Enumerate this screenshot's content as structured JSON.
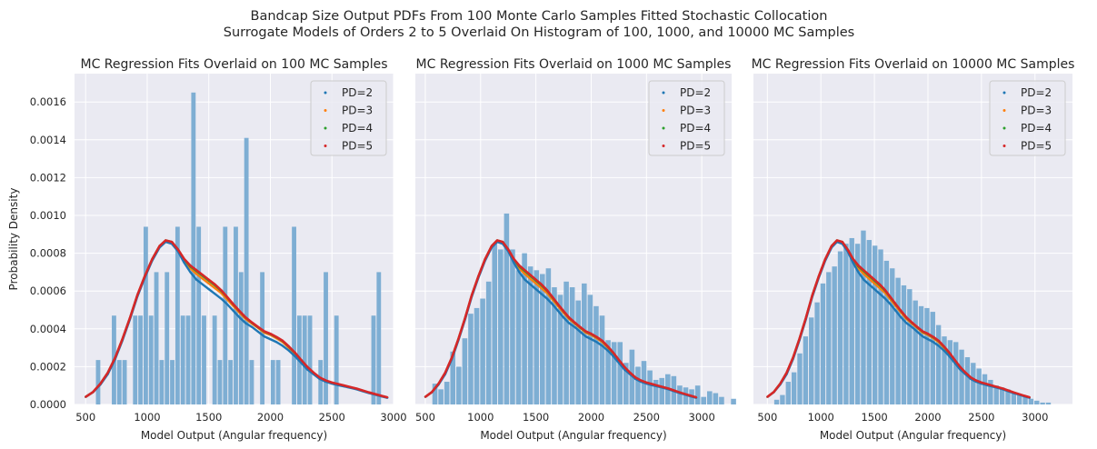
{
  "figure": {
    "suptitle_line1": "Bandcap Size Output PDFs From 100 Monte Carlo Samples Fitted Stochastic Collocation",
    "suptitle_line2": "Surrogate Models of Orders 2 to 5 Overlaid On Histogram of 100, 1000, and 10000 MC Samples",
    "colors": {
      "axes_bg": "#eaeaf2",
      "grid": "#ffffff",
      "hist": "#7eaed3",
      "pd2": "#1f77b4",
      "pd3": "#ff7f0e",
      "pd4": "#2ca02c",
      "pd5": "#d62728"
    }
  },
  "chart_data": [
    {
      "type": "histogram+line",
      "title": "MC Regression Fits Overlaid on 100 MC Samples",
      "xlabel": "Model Output (Angular frequency)",
      "ylabel": "Probability Density",
      "xlim": [
        410,
        3000
      ],
      "ylim": [
        0,
        0.00175
      ],
      "xticks": [
        500,
        1000,
        1500,
        2000,
        2500,
        3000
      ],
      "yticks": [
        0,
        0.0002,
        0.0004,
        0.0006,
        0.0008,
        0.001,
        0.0012,
        0.0014,
        0.0016
      ],
      "ytick_labels": [
        "0.0000",
        "0.0002",
        "0.0004",
        "0.0006",
        "0.0008",
        "0.0010",
        "0.0012",
        "0.0014",
        "0.0016"
      ],
      "grid": true,
      "legend": "top-right",
      "legend_entries": [
        "PD=2",
        "PD=3",
        "PD=4",
        "PD=5"
      ],
      "hist_bin_edges_start": 580,
      "hist_bin_width": 43,
      "hist_values": [
        0.000235,
        0,
        0,
        0.00047,
        0.000235,
        0.000235,
        0,
        0.00047,
        0.00047,
        0.00094,
        0.00047,
        0.0007,
        0.000235,
        0.0007,
        0.000235,
        0.00094,
        0.00047,
        0.00047,
        0.00165,
        0.00094,
        0.00047,
        0,
        0.00047,
        0.000235,
        0.00094,
        0.000235,
        0.00094,
        0.0007,
        0.00141,
        0.000235,
        0,
        0.0007,
        0,
        0.000235,
        0.000235,
        0,
        0,
        0.00094,
        0.00047,
        0.00047,
        0.00047,
        0,
        0.000235,
        0.0007,
        0,
        0.00047,
        0,
        0,
        0,
        0,
        0,
        0,
        0.00047,
        0.0007
      ]
    },
    {
      "type": "histogram+line",
      "title": "MC Regression Fits Overlaid on 1000 MC Samples",
      "xlabel": "Model Output (Angular frequency)",
      "ylabel": "",
      "xlim": [
        410,
        3270
      ],
      "ylim": [
        0,
        0.00175
      ],
      "xticks": [
        500,
        1000,
        1500,
        2000,
        2500,
        3000
      ],
      "grid": true,
      "legend": "top-right",
      "legend_entries": [
        "PD=2",
        "PD=3",
        "PD=4",
        "PD=5"
      ],
      "hist_bin_edges_start": 560,
      "hist_bin_width": 54,
      "hist_values": [
        0.00011,
        8e-05,
        0.00012,
        0.00028,
        0.0002,
        0.00035,
        0.00048,
        0.00051,
        0.00056,
        0.00065,
        0.00085,
        0.00082,
        0.00101,
        0.00082,
        0.00071,
        0.0008,
        0.00073,
        0.00071,
        0.00069,
        0.00072,
        0.00062,
        0.00058,
        0.00065,
        0.00062,
        0.00055,
        0.00064,
        0.00058,
        0.00052,
        0.00047,
        0.00034,
        0.00033,
        0.00033,
        0.00022,
        0.00029,
        0.0002,
        0.00023,
        0.00018,
        0.00013,
        0.00014,
        0.00016,
        0.00015,
        0.0001,
        9e-05,
        8e-05,
        0.0001,
        4e-05,
        7e-05,
        6e-05,
        4e-05,
        0,
        3e-05
      ]
    },
    {
      "type": "histogram+line",
      "title": "MC Regression Fits Overlaid on 10000 MC Samples",
      "xlabel": "Model Output (Angular frequency)",
      "ylabel": "",
      "xlim": [
        370,
        3350
      ],
      "ylim": [
        0,
        0.00175
      ],
      "xticks": [
        500,
        1000,
        1500,
        2000,
        2500,
        3000
      ],
      "grid": true,
      "legend": "top-right",
      "legend_entries": [
        "PD=2",
        "PD=3",
        "PD=4",
        "PD=5"
      ],
      "hist_bin_edges_start": 560,
      "hist_bin_width": 54,
      "hist_values": [
        2.5e-05,
        5e-05,
        0.00012,
        0.00017,
        0.00027,
        0.00036,
        0.00046,
        0.00054,
        0.00064,
        0.0007,
        0.00073,
        0.00081,
        0.00085,
        0.00088,
        0.00085,
        0.00092,
        0.00087,
        0.00084,
        0.00082,
        0.00076,
        0.00072,
        0.00067,
        0.00063,
        0.00061,
        0.00055,
        0.00052,
        0.00051,
        0.00049,
        0.00042,
        0.00036,
        0.00034,
        0.00033,
        0.00029,
        0.00025,
        0.00022,
        0.00019,
        0.00016,
        0.00013,
        0.0001,
        9e-05,
        8e-05,
        6e-05,
        5e-05,
        4e-05,
        3e-05,
        2e-05,
        1e-05,
        1e-05
      ]
    }
  ],
  "curves": {
    "x": [
      500,
      560,
      620,
      680,
      740,
      800,
      860,
      920,
      980,
      1040,
      1100,
      1150,
      1200,
      1250,
      1300,
      1350,
      1400,
      1450,
      1500,
      1550,
      1600,
      1650,
      1700,
      1750,
      1800,
      1850,
      1900,
      1950,
      2000,
      2050,
      2100,
      2150,
      2200,
      2250,
      2300,
      2350,
      2400,
      2450,
      2500,
      2550,
      2600,
      2650,
      2700,
      2750,
      2800,
      2850,
      2900,
      2950
    ],
    "pd2": [
      4e-05,
      6.5e-05,
      0.000105,
      0.00016,
      0.00024,
      0.00034,
      0.00045,
      0.00057,
      0.00067,
      0.00076,
      0.00083,
      0.00086,
      0.00085,
      0.00081,
      0.00075,
      0.0007,
      0.00066,
      0.000635,
      0.00061,
      0.000585,
      0.00056,
      0.00053,
      0.000495,
      0.00046,
      0.00043,
      0.00041,
      0.000385,
      0.00036,
      0.000345,
      0.00033,
      0.00031,
      0.000285,
      0.000255,
      0.00022,
      0.000185,
      0.00016,
      0.000135,
      0.00012,
      0.00011,
      0.000102,
      9.5e-05,
      8.8e-05,
      8e-05,
      7e-05,
      6e-05,
      5.2e-05,
      4.3e-05,
      3.5e-05
    ],
    "pd3": [
      4e-05,
      6.5e-05,
      0.000108,
      0.000165,
      0.000245,
      0.000345,
      0.000455,
      0.000575,
      0.000675,
      0.000765,
      0.000835,
      0.000865,
      0.000855,
      0.000815,
      0.00076,
      0.00072,
      0.00069,
      0.000665,
      0.00064,
      0.000615,
      0.00059,
      0.000555,
      0.00052,
      0.000485,
      0.000452,
      0.000428,
      0.000405,
      0.00038,
      0.000368,
      0.00035,
      0.00033,
      0.0003,
      0.00027,
      0.000232,
      0.000195,
      0.000165,
      0.00014,
      0.000125,
      0.000114,
      0.000106,
      9.8e-05,
      9e-05,
      8.2e-05,
      7.2e-05,
      6.2e-05,
      5.3e-05,
      4.4e-05,
      3.6e-05
    ],
    "pd4": [
      4e-05,
      6.6e-05,
      0.00011,
      0.000168,
      0.000248,
      0.000348,
      0.000458,
      0.000578,
      0.000678,
      0.000768,
      0.000838,
      0.000868,
      0.00086,
      0.00082,
      0.000768,
      0.00073,
      0.000705,
      0.00068,
      0.000655,
      0.00063,
      0.000602,
      0.000565,
      0.000528,
      0.000492,
      0.000458,
      0.000432,
      0.000408,
      0.000385,
      0.000372,
      0.000355,
      0.000335,
      0.000305,
      0.000272,
      0.000235,
      0.000198,
      0.000168,
      0.000142,
      0.000126,
      0.000115,
      0.000107,
      9.9e-05,
      9.1e-05,
      8.3e-05,
      7.3e-05,
      6.3e-05,
      5.4e-05,
      4.5e-05,
      3.7e-05
    ],
    "pd5": [
      4e-05,
      6.6e-05,
      0.00011,
      0.000168,
      0.000248,
      0.000348,
      0.000458,
      0.000578,
      0.000678,
      0.000768,
      0.000838,
      0.000868,
      0.00086,
      0.00082,
      0.00077,
      0.000735,
      0.00071,
      0.000685,
      0.00066,
      0.000635,
      0.000605,
      0.000568,
      0.00053,
      0.000494,
      0.00046,
      0.000434,
      0.00041,
      0.000387,
      0.000374,
      0.000357,
      0.000337,
      0.000307,
      0.000274,
      0.000236,
      0.000199,
      0.000169,
      0.000143,
      0.000127,
      0.000116,
      0.000108,
      0.0001,
      9.2e-05,
      8.4e-05,
      7.4e-05,
      6.4e-05,
      5.5e-05,
      4.6e-05,
      3.8e-05
    ]
  }
}
